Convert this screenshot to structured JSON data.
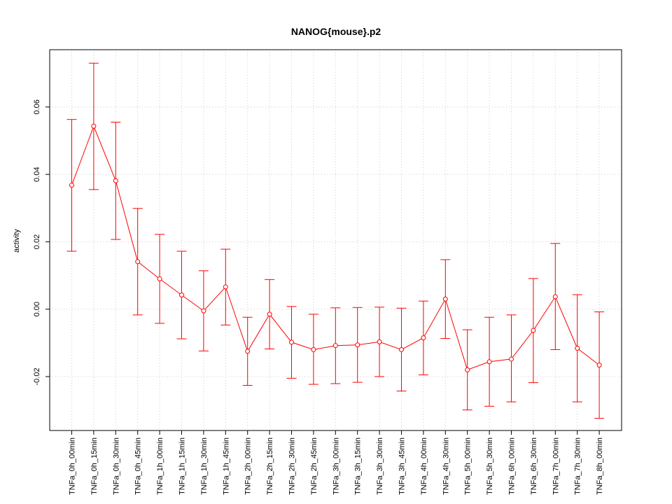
{
  "chart_data": {
    "type": "line",
    "title": "NANOG{mouse}.p2",
    "xlabel": "",
    "ylabel": "activity",
    "grid": true,
    "ylim": [
      -0.036,
      0.077
    ],
    "yticks": [
      -0.02,
      0.0,
      0.02,
      0.04,
      0.06
    ],
    "ytick_labels": [
      "-0.02",
      "0.00",
      "0.02",
      "0.04",
      "0.06"
    ],
    "series_color": "#ff0000",
    "grid_color": "#cccccc",
    "categories": [
      "TNFa_0h_00min",
      "TNFa_0h_15min",
      "TNFa_0h_30min",
      "TNFa_0h_45min",
      "TNFa_1h_00min",
      "TNFa_1h_15min",
      "TNFa_1h_30min",
      "TNFa_1h_45min",
      "TNFa_2h_00min",
      "TNFa_2h_15min",
      "TNFa_2h_30min",
      "TNFa_2h_45min",
      "TNFa_3h_00min",
      "TNFa_3h_15min",
      "TNFa_3h_30min",
      "TNFa_3h_45min",
      "TNFa_4h_00min",
      "TNFa_4h_30min",
      "TNFa_5h_00min",
      "TNFa_5h_30min",
      "TNFa_6h_00min",
      "TNFa_6h_30min",
      "TNFa_7h_00min",
      "TNFa_7h_30min",
      "TNFa_8h_00min"
    ],
    "values": [
      0.0368,
      0.0543,
      0.0381,
      0.0141,
      0.009,
      0.0042,
      -0.0005,
      0.0066,
      -0.0125,
      -0.0015,
      -0.0098,
      -0.012,
      -0.0108,
      -0.0106,
      -0.0097,
      -0.012,
      -0.0085,
      0.003,
      -0.018,
      -0.0156,
      -0.0148,
      -0.0063,
      0.0037,
      -0.0116,
      -0.0166
    ],
    "upper": [
      0.0563,
      0.073,
      0.0555,
      0.0299,
      0.0222,
      0.0172,
      0.0114,
      0.0178,
      -0.0024,
      0.0088,
      0.0008,
      -0.0015,
      0.0004,
      0.0005,
      0.0006,
      0.0003,
      0.0024,
      0.0147,
      -0.0061,
      -0.0024,
      -0.0017,
      0.0091,
      0.0195,
      0.0043,
      -0.0008
    ],
    "lower": [
      0.0172,
      0.0355,
      0.0207,
      -0.0017,
      -0.0042,
      -0.0088,
      -0.0124,
      -0.0047,
      -0.0226,
      -0.0118,
      -0.0205,
      -0.0223,
      -0.0221,
      -0.0217,
      -0.02,
      -0.0243,
      -0.0195,
      -0.0087,
      -0.0299,
      -0.0288,
      -0.0275,
      -0.0218,
      -0.012,
      -0.0275,
      -0.0324
    ]
  }
}
